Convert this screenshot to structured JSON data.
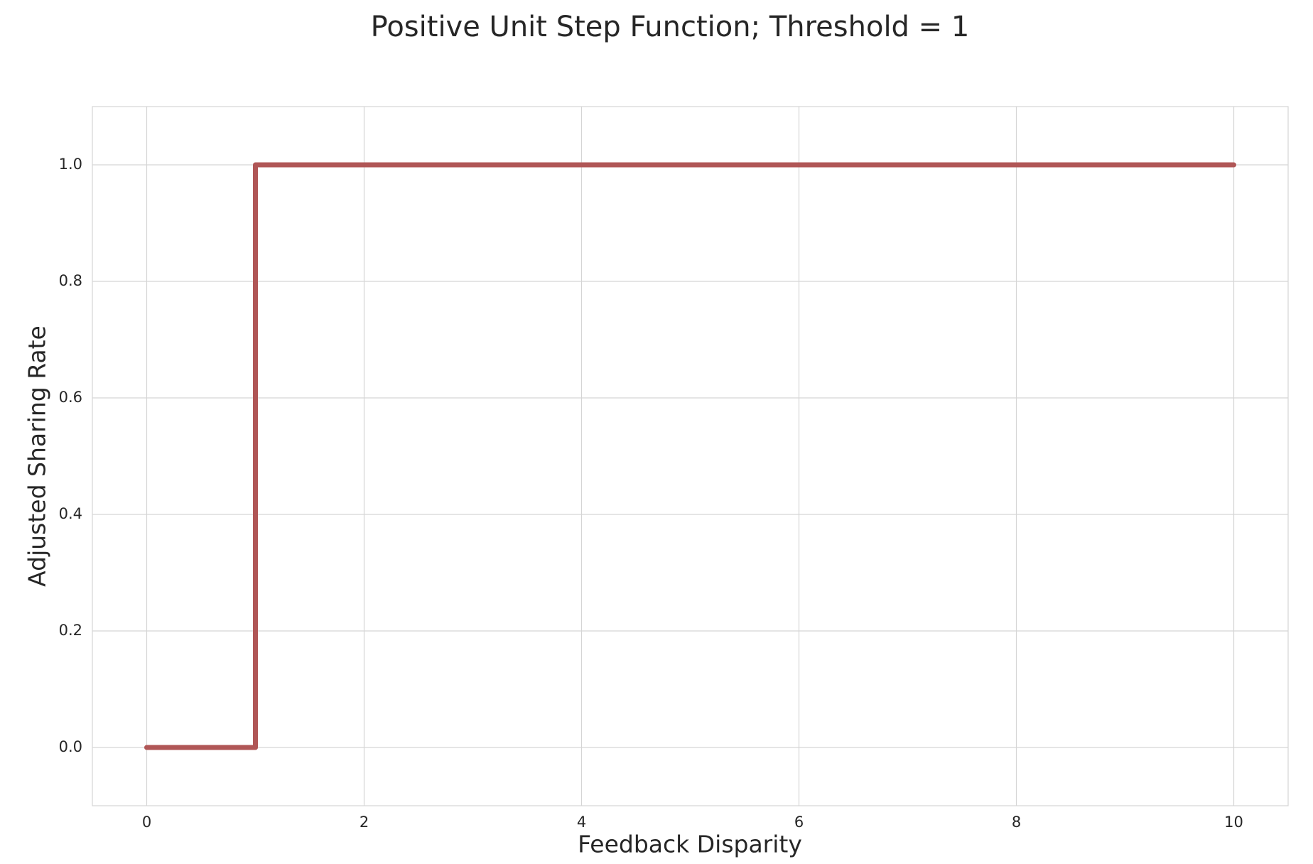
{
  "chart_data": {
    "type": "line",
    "title": "Positive Unit Step Function; Threshold = 1",
    "xlabel": "Feedback Disparity",
    "ylabel": "Adjusted Sharing Rate",
    "x": [
      0,
      1,
      1,
      10
    ],
    "series": [
      {
        "color": "#b05656",
        "values": [
          0,
          0,
          1,
          1
        ]
      }
    ],
    "xlim": [
      -0.5,
      10.5
    ],
    "xticks": [
      0,
      2,
      4,
      6,
      8,
      10
    ],
    "ylim": [
      -0.1,
      1.1
    ],
    "yticks": [
      {
        "value": 0,
        "label": "0.0"
      },
      {
        "value": 0.2,
        "label": "0.2"
      },
      {
        "value": 0.4,
        "label": "0.4"
      },
      {
        "value": 0.6,
        "label": "0.6"
      },
      {
        "value": 0.8,
        "label": "0.8"
      },
      {
        "value": 1,
        "label": "1.0"
      }
    ],
    "grid": true
  }
}
